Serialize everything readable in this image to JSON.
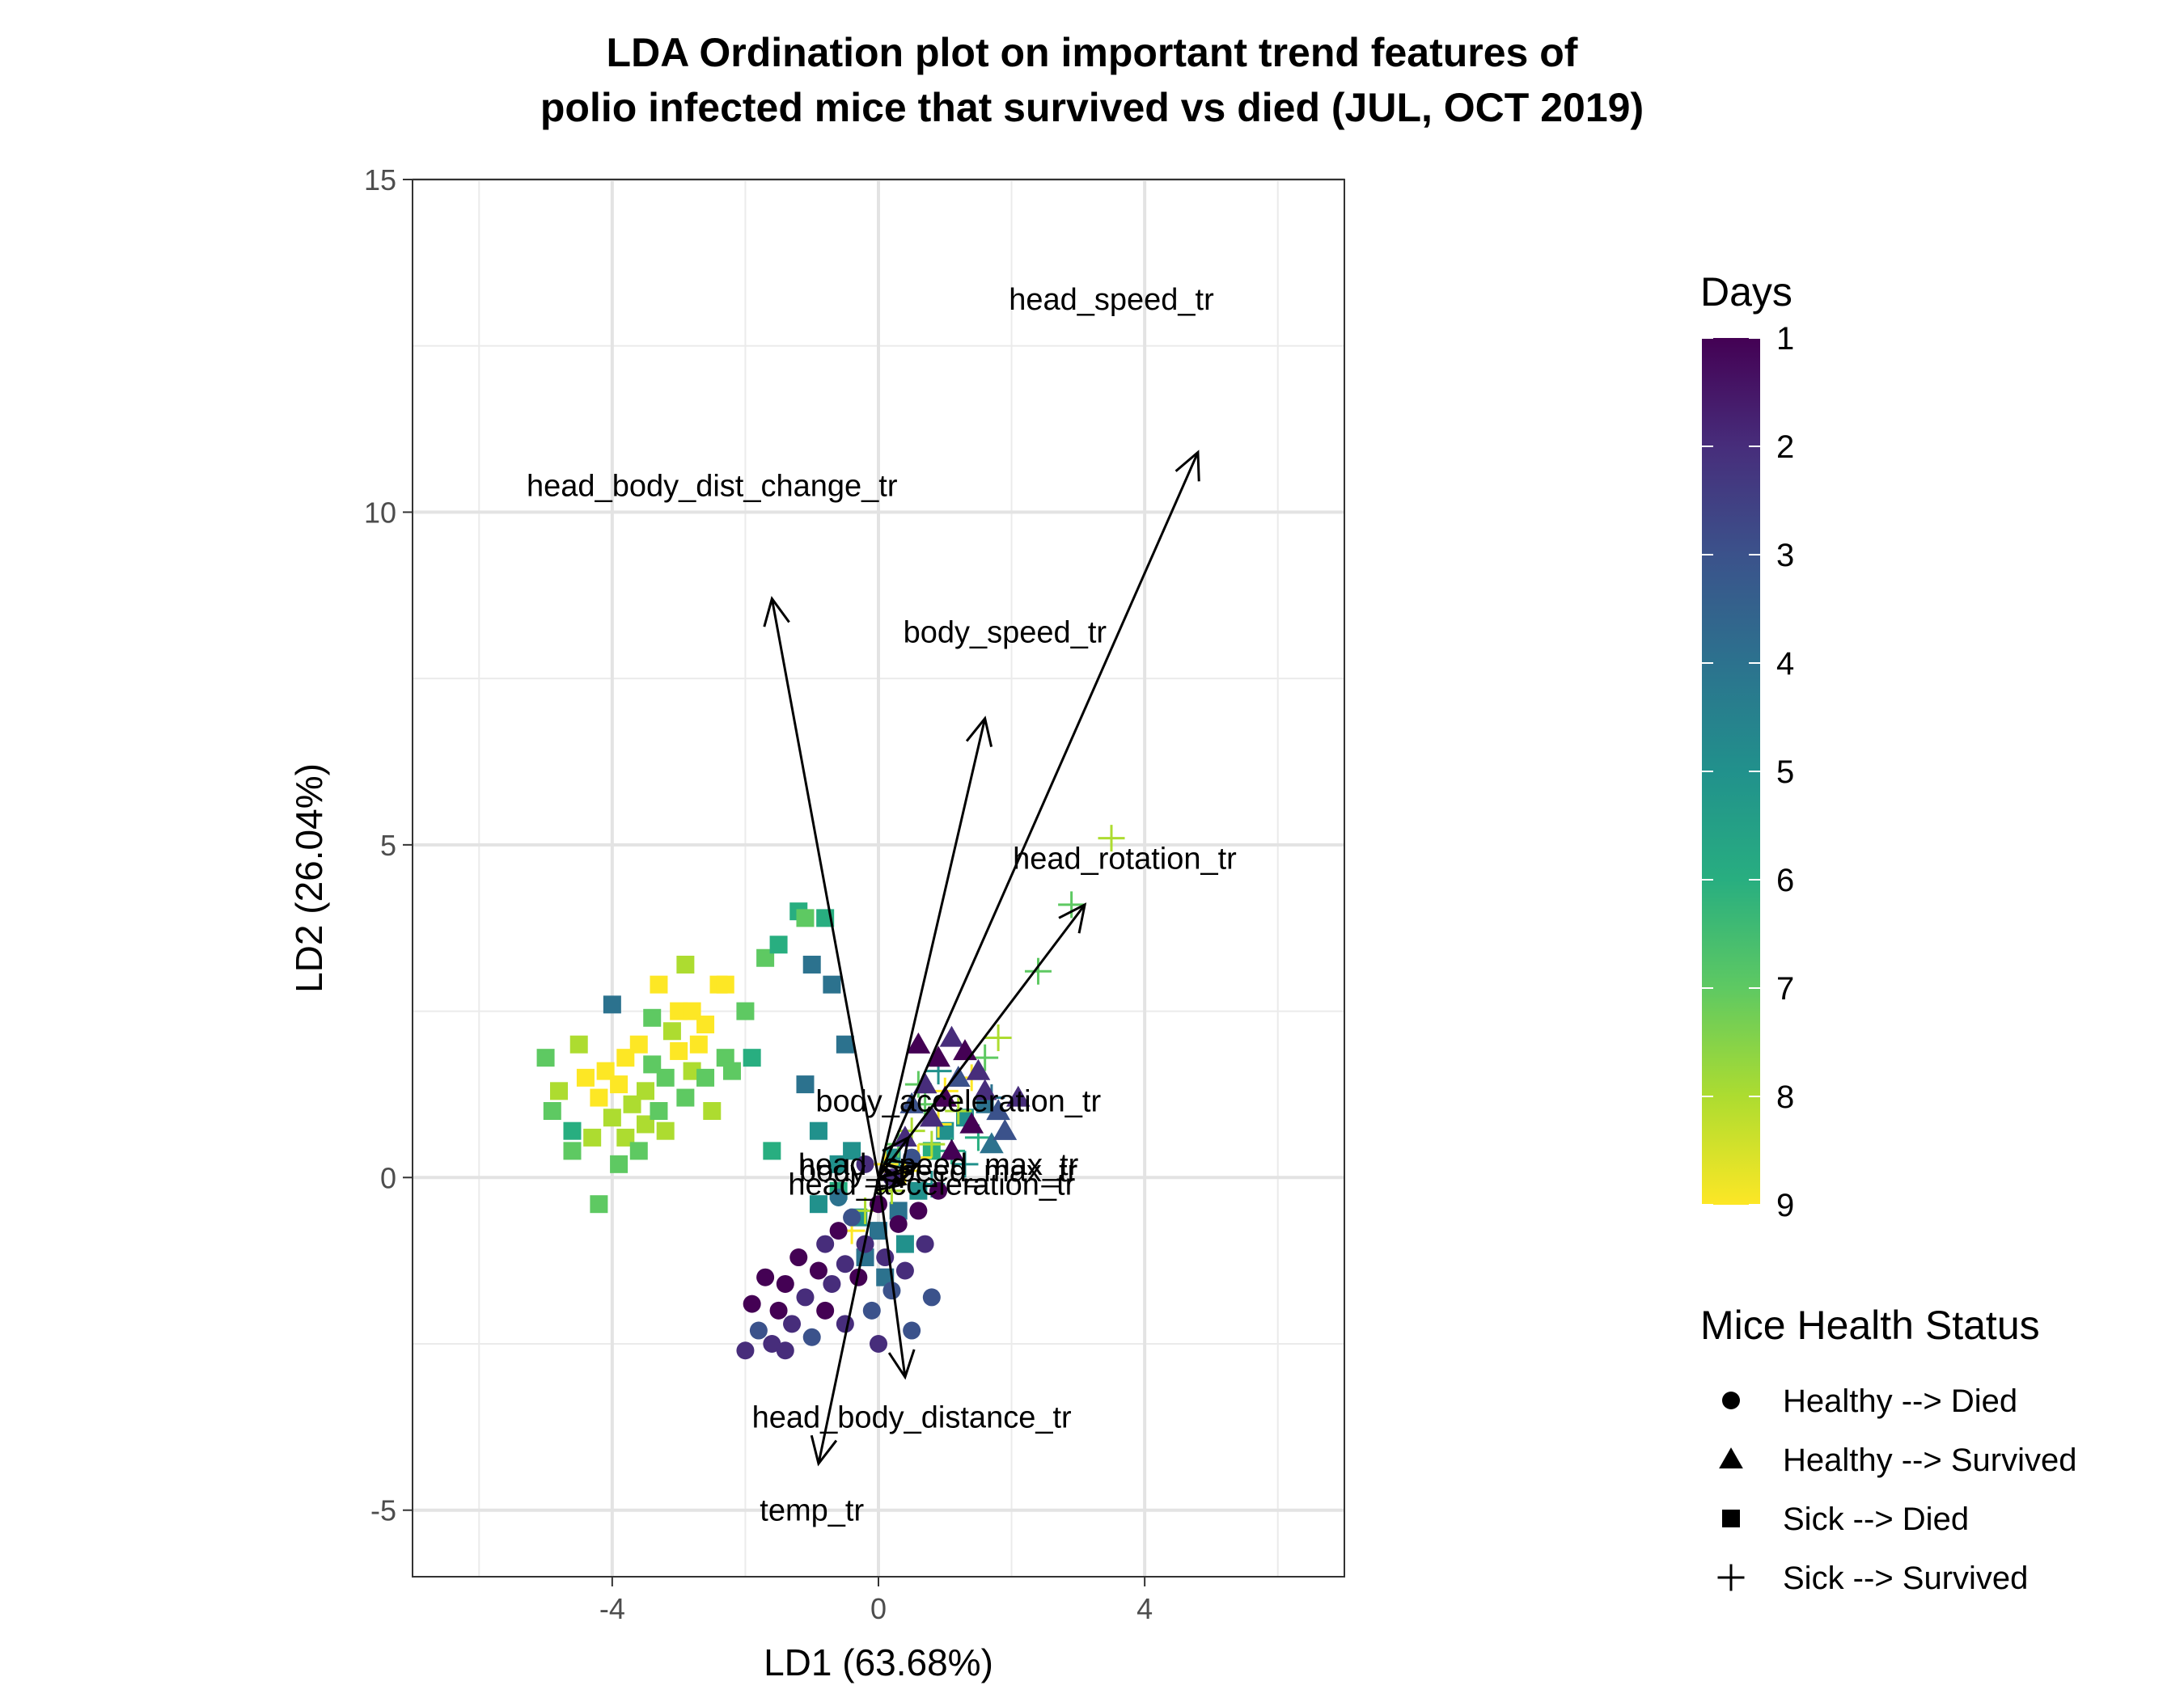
{
  "chart_data": {
    "type": "scatter",
    "title": "LDA Ordination plot on important trend features of\npolio infected mice that survived vs died (JUL, OCT 2019)",
    "title_lines": [
      "LDA Ordination plot on important trend features of",
      "polio infected mice that survived vs died (JUL, OCT 2019)"
    ],
    "xlabel": "LD1 (63.68%)",
    "ylabel": "LD2 (26.04%)",
    "xlim": [
      -7.0,
      7.0
    ],
    "ylim": [
      -6.0,
      15.0
    ],
    "xticks": [
      -4,
      0,
      4
    ],
    "yticks": [
      -5,
      0,
      5,
      10,
      15
    ],
    "xtick_labels": [
      "-4",
      "0",
      "4"
    ],
    "ytick_labels": [
      "-5",
      "0",
      "5",
      "10",
      "15"
    ],
    "grid": true,
    "color_scale": "viridis (reversed)",
    "color_legend": {
      "title": "Days",
      "min": 1,
      "max": 9,
      "breaks": [
        1,
        2,
        3,
        4,
        5,
        6,
        7,
        8,
        9
      ],
      "break_labels": [
        "1",
        "2",
        "3",
        "4",
        "5",
        "6",
        "7",
        "8",
        "9"
      ]
    },
    "shape_legend": {
      "title": "Mice Health Status",
      "entries": [
        {
          "label": "Healthy --> Died",
          "shape": "circle"
        },
        {
          "label": "Healthy --> Survived",
          "shape": "triangle"
        },
        {
          "label": "Sick --> Died",
          "shape": "square"
        },
        {
          "label": "Sick --> Survived",
          "shape": "plus"
        }
      ]
    },
    "loadings": [
      {
        "label": "head_speed_tr",
        "x": 4.8,
        "y": 10.9,
        "label_x": 3.5,
        "label_y": 13.2
      },
      {
        "label": "head_body_dist_change_tr",
        "x": -1.6,
        "y": 8.7,
        "label_x": -2.5,
        "label_y": 10.4
      },
      {
        "label": "body_speed_tr",
        "x": 1.6,
        "y": 6.9,
        "label_x": 1.9,
        "label_y": 8.2
      },
      {
        "label": "head_rotation_tr",
        "x": 3.1,
        "y": 4.1,
        "label_x": 3.7,
        "label_y": 4.8
      },
      {
        "label": "body_acceleration_tr",
        "x": 0.45,
        "y": 0.6,
        "label_x": 1.2,
        "label_y": 1.15
      },
      {
        "label": "head_speed_max_tr",
        "x": 0.6,
        "y": 0.2,
        "label_x": 0.9,
        "label_y": 0.2
      },
      {
        "label": "body_speed_max_tr",
        "x": 0.5,
        "y": 0.1,
        "label_x": 0.9,
        "label_y": 0.1
      },
      {
        "label": "head_acceleration_tr",
        "x": 0.4,
        "y": -0.1,
        "label_x": 0.8,
        "label_y": -0.1
      },
      {
        "label": "head_body_distance_tr",
        "x": 0.4,
        "y": -3.0,
        "label_x": 0.5,
        "label_y": -3.6
      },
      {
        "label": "temp_tr",
        "x": -0.9,
        "y": -4.3,
        "label_x": -1.0,
        "label_y": -5.0
      }
    ],
    "groups": [
      {
        "status": "Sick --> Died",
        "shape": "square",
        "points": [
          {
            "x": -5.0,
            "y": 1.8,
            "day": 7
          },
          {
            "x": -4.9,
            "y": 1.0,
            "day": 7
          },
          {
            "x": -4.8,
            "y": 1.3,
            "day": 8
          },
          {
            "x": -4.6,
            "y": 0.4,
            "day": 7
          },
          {
            "x": -4.6,
            "y": 0.7,
            "day": 6
          },
          {
            "x": -4.5,
            "y": 2.0,
            "day": 8
          },
          {
            "x": -4.4,
            "y": 1.5,
            "day": 9
          },
          {
            "x": -4.3,
            "y": 0.6,
            "day": 8
          },
          {
            "x": -4.2,
            "y": -0.4,
            "day": 7
          },
          {
            "x": -4.2,
            "y": 1.2,
            "day": 9
          },
          {
            "x": -4.1,
            "y": 1.6,
            "day": 9
          },
          {
            "x": -4.0,
            "y": 2.6,
            "day": 4
          },
          {
            "x": -4.0,
            "y": 0.9,
            "day": 8
          },
          {
            "x": -3.9,
            "y": 0.2,
            "day": 7
          },
          {
            "x": -3.9,
            "y": 1.4,
            "day": 9
          },
          {
            "x": -3.8,
            "y": 1.8,
            "day": 9
          },
          {
            "x": -3.8,
            "y": 0.6,
            "day": 8
          },
          {
            "x": -3.7,
            "y": 1.1,
            "day": 8
          },
          {
            "x": -3.6,
            "y": 2.0,
            "day": 9
          },
          {
            "x": -3.6,
            "y": 0.4,
            "day": 7
          },
          {
            "x": -3.5,
            "y": 1.3,
            "day": 8
          },
          {
            "x": -3.5,
            "y": 0.8,
            "day": 8
          },
          {
            "x": -3.4,
            "y": 2.4,
            "day": 7
          },
          {
            "x": -3.4,
            "y": 1.7,
            "day": 7
          },
          {
            "x": -3.3,
            "y": 1.0,
            "day": 7
          },
          {
            "x": -3.3,
            "y": 2.9,
            "day": 9
          },
          {
            "x": -3.2,
            "y": 1.5,
            "day": 7
          },
          {
            "x": -3.2,
            "y": 0.7,
            "day": 8
          },
          {
            "x": -3.1,
            "y": 2.2,
            "day": 8
          },
          {
            "x": -3.0,
            "y": 1.9,
            "day": 9
          },
          {
            "x": -3.0,
            "y": 2.5,
            "day": 9
          },
          {
            "x": -2.9,
            "y": 1.2,
            "day": 7
          },
          {
            "x": -2.9,
            "y": 3.2,
            "day": 8
          },
          {
            "x": -2.8,
            "y": 1.6,
            "day": 8
          },
          {
            "x": -2.8,
            "y": 2.5,
            "day": 9
          },
          {
            "x": -2.7,
            "y": 2.0,
            "day": 9
          },
          {
            "x": -2.6,
            "y": 1.5,
            "day": 7
          },
          {
            "x": -2.6,
            "y": 2.3,
            "day": 9
          },
          {
            "x": -2.5,
            "y": 1.0,
            "day": 8
          },
          {
            "x": -2.4,
            "y": 2.9,
            "day": 9
          },
          {
            "x": -2.3,
            "y": 2.9,
            "day": 9
          },
          {
            "x": -2.3,
            "y": 1.8,
            "day": 7
          },
          {
            "x": -2.2,
            "y": 1.6,
            "day": 7
          },
          {
            "x": -2.0,
            "y": 2.5,
            "day": 7
          },
          {
            "x": -1.9,
            "y": 1.8,
            "day": 6
          },
          {
            "x": -1.7,
            "y": 3.3,
            "day": 7
          },
          {
            "x": -1.5,
            "y": 3.5,
            "day": 6
          },
          {
            "x": -1.2,
            "y": 4.0,
            "day": 6
          },
          {
            "x": -1.1,
            "y": 3.9,
            "day": 7
          },
          {
            "x": -0.8,
            "y": 3.9,
            "day": 6
          },
          {
            "x": -1.0,
            "y": 3.2,
            "day": 4
          },
          {
            "x": -0.7,
            "y": 2.9,
            "day": 4
          },
          {
            "x": -1.1,
            "y": 1.4,
            "day": 4
          },
          {
            "x": -0.5,
            "y": 2.0,
            "day": 4
          },
          {
            "x": -1.6,
            "y": 0.4,
            "day": 6
          },
          {
            "x": -0.9,
            "y": 0.7,
            "day": 5
          },
          {
            "x": -0.6,
            "y": 0.2,
            "day": 5
          },
          {
            "x": -0.9,
            "y": -0.4,
            "day": 5
          },
          {
            "x": -0.6,
            "y": -0.2,
            "day": 6
          },
          {
            "x": -0.4,
            "y": 0.4,
            "day": 5
          },
          {
            "x": -0.3,
            "y": -0.6,
            "day": 5
          },
          {
            "x": 0.0,
            "y": -0.8,
            "day": 4
          },
          {
            "x": 0.2,
            "y": 0.3,
            "day": 5
          },
          {
            "x": 0.3,
            "y": -0.5,
            "day": 4
          },
          {
            "x": 0.6,
            "y": -0.2,
            "day": 5
          },
          {
            "x": 0.8,
            "y": 0.4,
            "day": 6
          },
          {
            "x": 1.0,
            "y": 0.7,
            "day": 5
          },
          {
            "x": 1.3,
            "y": 0.9,
            "day": 5
          },
          {
            "x": 1.6,
            "y": 1.1,
            "day": 4
          },
          {
            "x": -0.2,
            "y": -1.2,
            "day": 4
          },
          {
            "x": 0.1,
            "y": -1.5,
            "day": 4
          },
          {
            "x": 0.4,
            "y": -1.0,
            "day": 5
          }
        ]
      },
      {
        "status": "Sick --> Survived",
        "shape": "plus",
        "points": [
          {
            "x": 3.5,
            "y": 5.1,
            "day": 8
          },
          {
            "x": 2.9,
            "y": 4.1,
            "day": 7
          },
          {
            "x": 2.4,
            "y": 3.1,
            "day": 7
          },
          {
            "x": 1.8,
            "y": 2.1,
            "day": 8
          },
          {
            "x": 1.6,
            "y": 1.8,
            "day": 7
          },
          {
            "x": 1.4,
            "y": 1.5,
            "day": 9
          },
          {
            "x": 1.2,
            "y": 1.0,
            "day": 8
          },
          {
            "x": 1.0,
            "y": 1.3,
            "day": 9
          },
          {
            "x": 0.9,
            "y": 0.8,
            "day": 9
          },
          {
            "x": 0.8,
            "y": 0.5,
            "day": 8
          },
          {
            "x": 0.7,
            "y": 1.1,
            "day": 7
          },
          {
            "x": 0.6,
            "y": 0.3,
            "day": 9
          },
          {
            "x": 0.5,
            "y": 0.7,
            "day": 8
          },
          {
            "x": 0.4,
            "y": 0.1,
            "day": 9
          },
          {
            "x": 0.3,
            "y": 0.5,
            "day": 7
          },
          {
            "x": 0.2,
            "y": -0.2,
            "day": 8
          },
          {
            "x": 0.1,
            "y": 0.2,
            "day": 9
          },
          {
            "x": -0.2,
            "y": -0.5,
            "day": 8
          },
          {
            "x": -0.4,
            "y": -0.8,
            "day": 9
          },
          {
            "x": 1.1,
            "y": 0.4,
            "day": 6
          },
          {
            "x": 1.3,
            "y": 0.2,
            "day": 5
          },
          {
            "x": 1.5,
            "y": 0.6,
            "day": 6
          },
          {
            "x": 0.8,
            "y": -0.1,
            "day": 5
          },
          {
            "x": 1.7,
            "y": 1.2,
            "day": 4
          },
          {
            "x": 0.9,
            "y": 1.6,
            "day": 5
          },
          {
            "x": 0.6,
            "y": 1.4,
            "day": 7
          }
        ]
      },
      {
        "status": "Healthy --> Survived",
        "shape": "triangle",
        "points": [
          {
            "x": 0.6,
            "y": 2.0,
            "day": 1
          },
          {
            "x": 0.9,
            "y": 1.8,
            "day": 1
          },
          {
            "x": 1.1,
            "y": 2.1,
            "day": 2
          },
          {
            "x": 1.3,
            "y": 1.9,
            "day": 1
          },
          {
            "x": 1.5,
            "y": 1.6,
            "day": 2
          },
          {
            "x": 0.7,
            "y": 1.4,
            "day": 2
          },
          {
            "x": 1.0,
            "y": 1.2,
            "day": 1
          },
          {
            "x": 1.2,
            "y": 1.5,
            "day": 3
          },
          {
            "x": 1.6,
            "y": 1.3,
            "day": 2
          },
          {
            "x": 1.8,
            "y": 1.0,
            "day": 3
          },
          {
            "x": 2.1,
            "y": 1.2,
            "day": 2
          },
          {
            "x": 1.4,
            "y": 0.8,
            "day": 1
          },
          {
            "x": 0.8,
            "y": 0.9,
            "day": 2
          },
          {
            "x": 0.5,
            "y": 1.1,
            "day": 3
          },
          {
            "x": 1.7,
            "y": 0.5,
            "day": 4
          },
          {
            "x": 1.9,
            "y": 0.7,
            "day": 3
          },
          {
            "x": 0.4,
            "y": 0.6,
            "day": 2
          },
          {
            "x": 1.1,
            "y": 0.4,
            "day": 1
          }
        ]
      },
      {
        "status": "Healthy --> Died",
        "shape": "circle",
        "points": [
          {
            "x": -2.0,
            "y": -2.6,
            "day": 2
          },
          {
            "x": -1.8,
            "y": -2.3,
            "day": 3
          },
          {
            "x": -1.6,
            "y": -2.5,
            "day": 2
          },
          {
            "x": -1.5,
            "y": -2.0,
            "day": 1
          },
          {
            "x": -1.4,
            "y": -1.6,
            "day": 1
          },
          {
            "x": -1.3,
            "y": -2.2,
            "day": 2
          },
          {
            "x": -1.2,
            "y": -1.2,
            "day": 1
          },
          {
            "x": -1.1,
            "y": -1.8,
            "day": 2
          },
          {
            "x": -1.0,
            "y": -2.4,
            "day": 3
          },
          {
            "x": -0.9,
            "y": -1.4,
            "day": 1
          },
          {
            "x": -0.8,
            "y": -1.0,
            "day": 2
          },
          {
            "x": -0.8,
            "y": -2.0,
            "day": 1
          },
          {
            "x": -0.7,
            "y": -1.6,
            "day": 2
          },
          {
            "x": -0.6,
            "y": -0.8,
            "day": 1
          },
          {
            "x": -0.5,
            "y": -1.3,
            "day": 2
          },
          {
            "x": -0.5,
            "y": -2.2,
            "day": 2
          },
          {
            "x": -0.4,
            "y": -0.6,
            "day": 3
          },
          {
            "x": -0.3,
            "y": -1.5,
            "day": 1
          },
          {
            "x": -0.2,
            "y": -1.0,
            "day": 2
          },
          {
            "x": -0.1,
            "y": -2.0,
            "day": 3
          },
          {
            "x": 0.0,
            "y": -0.4,
            "day": 1
          },
          {
            "x": 0.1,
            "y": -1.2,
            "day": 2
          },
          {
            "x": 0.2,
            "y": -1.7,
            "day": 3
          },
          {
            "x": 0.3,
            "y": -0.7,
            "day": 1
          },
          {
            "x": 0.4,
            "y": -1.4,
            "day": 2
          },
          {
            "x": 0.5,
            "y": -2.3,
            "day": 3
          },
          {
            "x": 0.6,
            "y": -0.5,
            "day": 1
          },
          {
            "x": 0.7,
            "y": -1.0,
            "day": 2
          },
          {
            "x": 0.8,
            "y": -1.8,
            "day": 3
          },
          {
            "x": 0.9,
            "y": -0.2,
            "day": 1
          },
          {
            "x": -1.7,
            "y": -1.5,
            "day": 1
          },
          {
            "x": -1.9,
            "y": -1.9,
            "day": 1
          },
          {
            "x": -1.4,
            "y": -2.6,
            "day": 2
          },
          {
            "x": -0.2,
            "y": 0.2,
            "day": 2
          },
          {
            "x": 0.2,
            "y": 0.0,
            "day": 2
          },
          {
            "x": 0.5,
            "y": 0.3,
            "day": 3
          },
          {
            "x": -0.6,
            "y": -0.3,
            "day": 4
          },
          {
            "x": 0.0,
            "y": -2.5,
            "day": 2
          }
        ]
      }
    ]
  }
}
